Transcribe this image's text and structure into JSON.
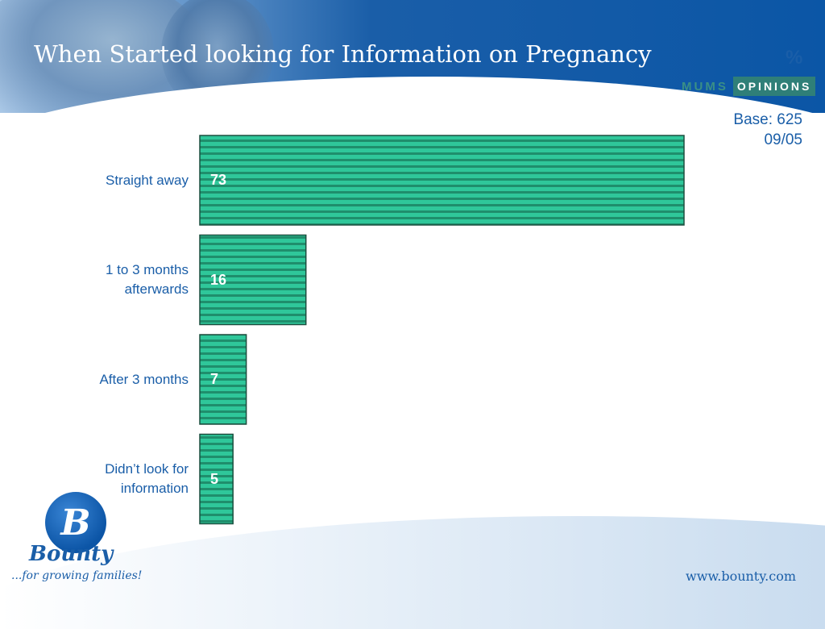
{
  "header": {
    "title": "When Started looking for Information on Pregnancy",
    "unit": "%",
    "logo_mums": "MUMS",
    "logo_opinions": "OPINIONS"
  },
  "base": {
    "line1": "Base: 625",
    "line2": "09/05"
  },
  "footer": {
    "url": "www.bounty.com",
    "brand_name": "Bounty",
    "brand_tagline": "...for growing families!"
  },
  "colors": {
    "title_text": "#ffffff",
    "accent_blue": "#1a5ea8",
    "bar_fill": "#2fc79a",
    "bar_stripe": "#1f8e6c"
  },
  "chart_data": {
    "type": "bar",
    "orientation": "horizontal",
    "categories": [
      "Straight away",
      "1 to 3 months\nafterwards",
      "After 3 months",
      "Didn’t look for\ninformation"
    ],
    "values": [
      73,
      16,
      7,
      5
    ],
    "unit": "%",
    "xlim": [
      0,
      100
    ],
    "grid": false
  }
}
